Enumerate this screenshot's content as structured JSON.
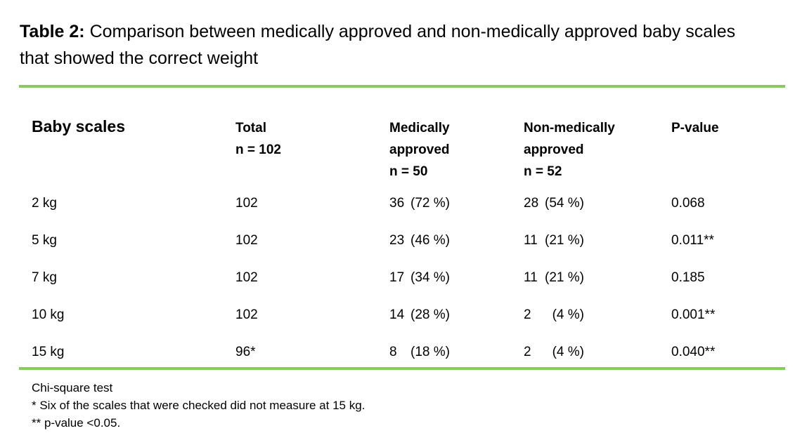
{
  "colors": {
    "rule_green": "#87cb5c",
    "text_black": "#000000",
    "background": "#ffffff"
  },
  "title": {
    "label": "Table 2:",
    "text": " Comparison between medically approved and non-medically approved baby scales\nthat showed the correct weight"
  },
  "table": {
    "columns": [
      {
        "header": "Baby scales"
      },
      {
        "header": "Total\nn = 102"
      },
      {
        "header": "Medically\napproved\nn = 50"
      },
      {
        "header": "Non-medically\napproved\nn = 52"
      },
      {
        "header": "P-value"
      }
    ],
    "rows": [
      {
        "label": "2 kg",
        "total": "102",
        "medical_count": "36",
        "medical_pct": "(72 %)",
        "nonmedical_count": "28",
        "nonmedical_pct": "(54 %)",
        "p_value": "0.068"
      },
      {
        "label": "5 kg",
        "total": "102",
        "medical_count": "23",
        "medical_pct": "(46 %)",
        "nonmedical_count": "11",
        "nonmedical_pct": "(21 %)",
        "p_value": "0.011**"
      },
      {
        "label": "7 kg",
        "total": "102",
        "medical_count": "17",
        "medical_pct": "(34 %)",
        "nonmedical_count": "11",
        "nonmedical_pct": "(21 %)",
        "p_value": "0.185"
      },
      {
        "label": "10 kg",
        "total": "102",
        "medical_count": "14",
        "medical_pct": "(28 %)",
        "nonmedical_count": "2",
        "nonmedical_pct": "(4 %)",
        "p_value": "0.001**"
      },
      {
        "label": "15 kg",
        "total": "96*",
        "medical_count": "8",
        "medical_pct": "(18 %)",
        "nonmedical_count": "2",
        "nonmedical_pct": "(4 %)",
        "p_value": "0.040**"
      }
    ]
  },
  "footnotes": [
    "Chi-square test",
    "* Six of the scales that were checked did not measure at 15 kg.",
    "** p-value <0.05."
  ]
}
